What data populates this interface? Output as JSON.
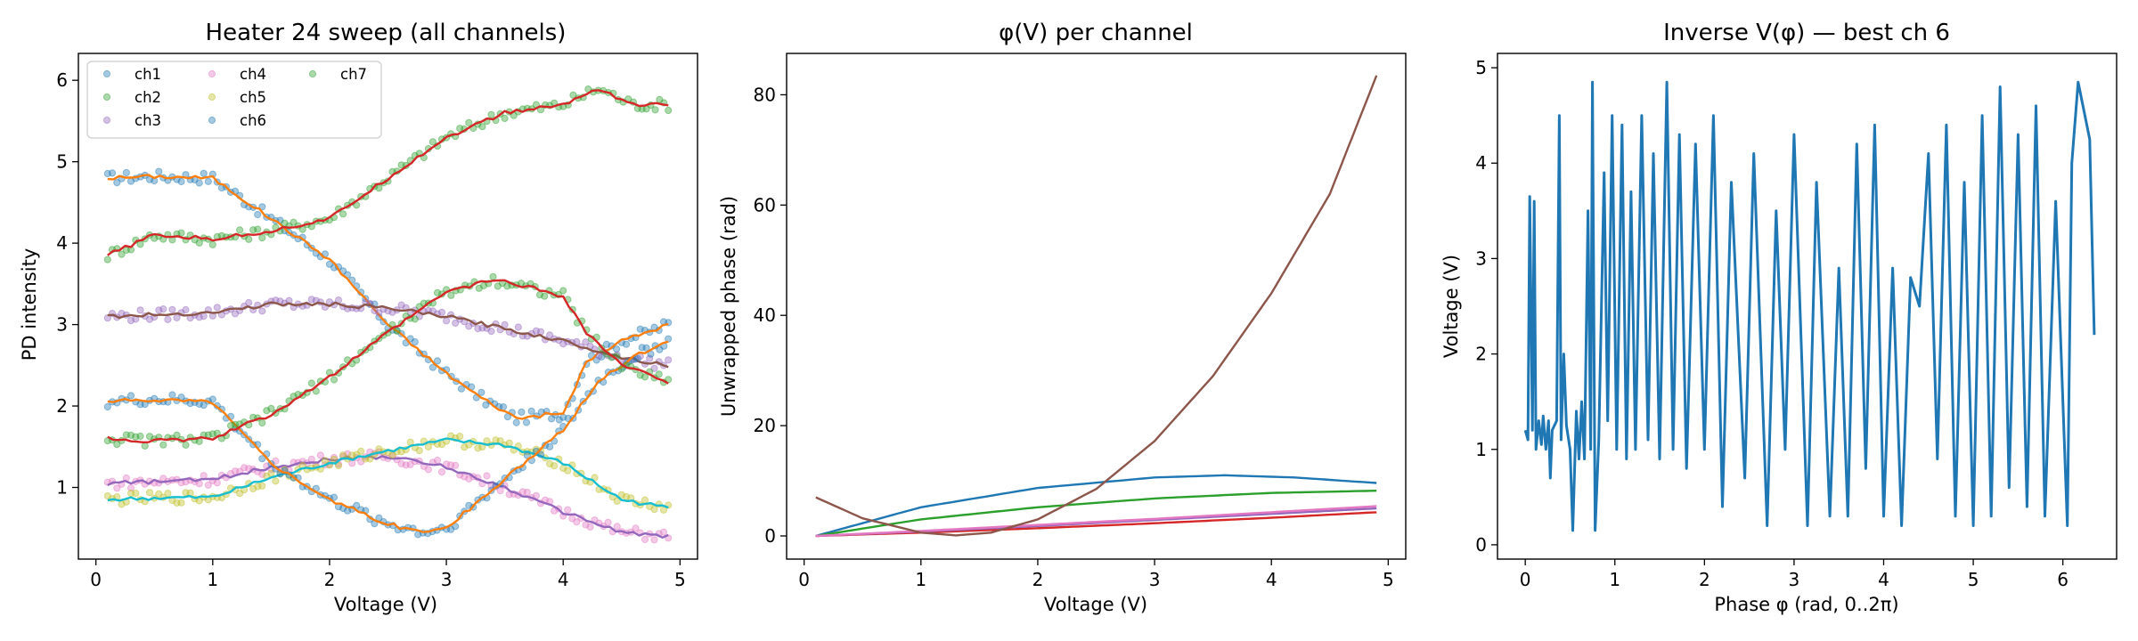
{
  "chart_data": [
    {
      "type": "scatter",
      "title": "Heater 24 sweep (all channels)",
      "xlabel": "Voltage (V)",
      "ylabel": "PD intensity",
      "xlim": [
        -0.15,
        5.15
      ],
      "ylim": [
        0.12,
        6.33
      ],
      "xticks": [
        "0",
        "1",
        "2",
        "3",
        "4",
        "5"
      ],
      "yticks": [
        "1",
        "2",
        "3",
        "4",
        "5",
        "6"
      ],
      "grid": false,
      "legend": "top-left",
      "legend_ncol": 3,
      "series": [
        {
          "name": "ch1",
          "color": "#1f77b4",
          "points": [
            [
              0.1,
              4.8
            ],
            [
              0.5,
              4.82
            ],
            [
              1.0,
              4.8
            ],
            [
              1.5,
              4.3
            ],
            [
              2.0,
              3.8
            ],
            [
              2.5,
              3.0
            ],
            [
              3.0,
              2.4
            ],
            [
              3.3,
              2.1
            ],
            [
              3.6,
              1.85
            ],
            [
              3.9,
              1.9
            ],
            [
              4.0,
              1.9
            ],
            [
              4.2,
              2.55
            ],
            [
              4.5,
              2.8
            ],
            [
              4.9,
              3.0
            ]
          ]
        },
        {
          "name": "ch2",
          "color": "#2ca02c",
          "points": [
            [
              0.1,
              3.85
            ],
            [
              0.5,
              4.1
            ],
            [
              1.0,
              4.05
            ],
            [
              1.5,
              4.15
            ],
            [
              2.0,
              4.3
            ],
            [
              2.5,
              4.8
            ],
            [
              3.0,
              5.3
            ],
            [
              3.5,
              5.6
            ],
            [
              4.0,
              5.7
            ],
            [
              4.3,
              5.9
            ],
            [
              4.6,
              5.7
            ],
            [
              4.9,
              5.7
            ]
          ]
        },
        {
          "name": "ch3",
          "color": "#9467bd",
          "points": [
            [
              0.1,
              3.1
            ],
            [
              0.5,
              3.12
            ],
            [
              1.0,
              3.15
            ],
            [
              1.5,
              3.25
            ],
            [
              2.0,
              3.25
            ],
            [
              2.5,
              3.2
            ],
            [
              3.0,
              3.1
            ],
            [
              3.5,
              2.95
            ],
            [
              4.0,
              2.8
            ],
            [
              4.5,
              2.6
            ],
            [
              4.9,
              2.5
            ]
          ]
        },
        {
          "name": "ch4",
          "color": "#e377c2",
          "points": [
            [
              0.1,
              1.05
            ],
            [
              0.5,
              1.07
            ],
            [
              1.0,
              1.1
            ],
            [
              1.5,
              1.25
            ],
            [
              2.0,
              1.35
            ],
            [
              2.5,
              1.38
            ],
            [
              3.0,
              1.25
            ],
            [
              3.5,
              1.0
            ],
            [
              4.0,
              0.7
            ],
            [
              4.5,
              0.45
            ],
            [
              4.9,
              0.4
            ]
          ]
        },
        {
          "name": "ch5",
          "color": "#bcbd22",
          "points": [
            [
              0.1,
              0.85
            ],
            [
              0.5,
              0.87
            ],
            [
              1.0,
              0.88
            ],
            [
              1.5,
              1.12
            ],
            [
              2.0,
              1.3
            ],
            [
              2.5,
              1.45
            ],
            [
              3.0,
              1.58
            ],
            [
              3.5,
              1.52
            ],
            [
              4.0,
              1.3
            ],
            [
              4.5,
              0.85
            ],
            [
              4.9,
              0.75
            ]
          ]
        },
        {
          "name": "ch6",
          "color": "#1f77b4",
          "points": [
            [
              0.1,
              2.05
            ],
            [
              0.5,
              2.08
            ],
            [
              1.0,
              2.05
            ],
            [
              1.5,
              1.3
            ],
            [
              2.0,
              0.85
            ],
            [
              2.5,
              0.55
            ],
            [
              2.8,
              0.45
            ],
            [
              3.0,
              0.5
            ],
            [
              3.5,
              1.1
            ],
            [
              4.0,
              1.7
            ],
            [
              4.3,
              2.3
            ],
            [
              4.6,
              2.6
            ],
            [
              4.9,
              2.8
            ]
          ]
        },
        {
          "name": "ch7",
          "color": "#2ca02c",
          "points": [
            [
              0.1,
              1.6
            ],
            [
              0.5,
              1.57
            ],
            [
              1.0,
              1.6
            ],
            [
              1.5,
              1.9
            ],
            [
              2.0,
              2.35
            ],
            [
              2.5,
              2.9
            ],
            [
              3.0,
              3.4
            ],
            [
              3.4,
              3.55
            ],
            [
              3.6,
              3.5
            ],
            [
              4.0,
              3.35
            ],
            [
              4.2,
              2.9
            ],
            [
              4.5,
              2.5
            ],
            [
              4.9,
              2.3
            ]
          ]
        }
      ]
    },
    {
      "type": "line",
      "title": "φ(V) per channel",
      "xlabel": "Voltage (V)",
      "ylabel": "Unwrapped phase (rad)",
      "xlim": [
        -0.15,
        5.15
      ],
      "ylim": [
        -4.2,
        87.5
      ],
      "xticks": [
        "0",
        "1",
        "2",
        "3",
        "4",
        "5"
      ],
      "yticks": [
        "0",
        "20",
        "40",
        "60",
        "80"
      ],
      "grid": false,
      "series": [
        {
          "color": "#1f77b4",
          "points": [
            [
              0.1,
              0
            ],
            [
              1,
              5.2
            ],
            [
              2,
              8.7
            ],
            [
              3,
              10.6
            ],
            [
              3.6,
              11.0
            ],
            [
              4.2,
              10.6
            ],
            [
              4.9,
              9.6
            ]
          ]
        },
        {
          "color": "#2ca02c",
          "points": [
            [
              0.1,
              0
            ],
            [
              1,
              3.0
            ],
            [
              2,
              5.2
            ],
            [
              3,
              6.8
            ],
            [
              4,
              7.8
            ],
            [
              4.9,
              8.2
            ]
          ]
        },
        {
          "color": "#d62728",
          "points": [
            [
              0.1,
              0
            ],
            [
              1,
              0.6
            ],
            [
              2,
              1.4
            ],
            [
              3,
              2.3
            ],
            [
              4,
              3.3
            ],
            [
              4.9,
              4.3
            ]
          ]
        },
        {
          "color": "#9467bd",
          "points": [
            [
              0.1,
              0
            ],
            [
              1,
              0.8
            ],
            [
              2,
              1.8
            ],
            [
              3,
              2.9
            ],
            [
              4,
              4.0
            ],
            [
              4.9,
              5.0
            ]
          ]
        },
        {
          "color": "#e377c2",
          "points": [
            [
              0.1,
              0
            ],
            [
              1,
              0.9
            ],
            [
              2,
              2.0
            ],
            [
              3,
              3.1
            ],
            [
              4,
              4.3
            ],
            [
              4.9,
              5.4
            ]
          ]
        },
        {
          "color": "#8c564b",
          "points": [
            [
              0.1,
              7.0
            ],
            [
              0.5,
              3.2
            ],
            [
              1,
              0.6
            ],
            [
              1.3,
              0.1
            ],
            [
              1.6,
              0.6
            ],
            [
              2,
              3.0
            ],
            [
              2.5,
              8.5
            ],
            [
              3,
              17.2
            ],
            [
              3.5,
              29
            ],
            [
              4,
              44
            ],
            [
              4.5,
              62
            ],
            [
              4.9,
              83.5
            ]
          ]
        }
      ]
    },
    {
      "type": "line",
      "title": "Inverse V(φ) — best ch 6",
      "xlabel": "Phase φ (rad, 0..2π)",
      "ylabel": "Voltage (V)",
      "xlim": [
        -0.31,
        6.6
      ],
      "ylim": [
        -0.15,
        5.15
      ],
      "xticks": [
        "0",
        "1",
        "2",
        "3",
        "4",
        "5",
        "6"
      ],
      "yticks": [
        "0",
        "1",
        "2",
        "3",
        "4",
        "5"
      ],
      "grid": false,
      "series": [
        {
          "color": "#1f77b4",
          "points": [
            [
              0,
              1.2
            ],
            [
              0.03,
              1.1
            ],
            [
              0.05,
              3.65
            ],
            [
              0.08,
              1.2
            ],
            [
              0.1,
              3.6
            ],
            [
              0.12,
              1.0
            ],
            [
              0.15,
              1.3
            ],
            [
              0.18,
              1.05
            ],
            [
              0.2,
              1.35
            ],
            [
              0.23,
              1.0
            ],
            [
              0.26,
              1.3
            ],
            [
              0.28,
              0.7
            ],
            [
              0.3,
              1.2
            ],
            [
              0.35,
              1.3
            ],
            [
              0.38,
              4.5
            ],
            [
              0.4,
              1.1
            ],
            [
              0.43,
              2.0
            ],
            [
              0.46,
              1.25
            ],
            [
              0.5,
              1.0
            ],
            [
              0.53,
              0.15
            ],
            [
              0.57,
              1.4
            ],
            [
              0.6,
              0.9
            ],
            [
              0.63,
              1.5
            ],
            [
              0.66,
              0.9
            ],
            [
              0.7,
              3.5
            ],
            [
              0.73,
              1.0
            ],
            [
              0.75,
              4.85
            ],
            [
              0.78,
              0.15
            ],
            [
              0.82,
              1.1
            ],
            [
              0.88,
              3.9
            ],
            [
              0.92,
              1.3
            ],
            [
              0.97,
              4.5
            ],
            [
              1.02,
              1.0
            ],
            [
              1.08,
              4.4
            ],
            [
              1.13,
              0.9
            ],
            [
              1.18,
              3.7
            ],
            [
              1.23,
              1.0
            ],
            [
              1.3,
              4.5
            ],
            [
              1.37,
              1.1
            ],
            [
              1.43,
              4.1
            ],
            [
              1.5,
              0.9
            ],
            [
              1.58,
              4.85
            ],
            [
              1.65,
              1.0
            ],
            [
              1.72,
              4.3
            ],
            [
              1.8,
              0.8
            ],
            [
              1.9,
              4.2
            ],
            [
              2.0,
              1.0
            ],
            [
              2.1,
              4.5
            ],
            [
              2.2,
              0.4
            ],
            [
              2.3,
              3.8
            ],
            [
              2.45,
              0.7
            ],
            [
              2.55,
              4.1
            ],
            [
              2.7,
              0.2
            ],
            [
              2.8,
              3.5
            ],
            [
              2.9,
              1.0
            ],
            [
              3.0,
              4.3
            ],
            [
              3.15,
              0.2
            ],
            [
              3.25,
              3.8
            ],
            [
              3.4,
              0.3
            ],
            [
              3.5,
              2.9
            ],
            [
              3.6,
              0.3
            ],
            [
              3.7,
              4.2
            ],
            [
              3.8,
              0.8
            ],
            [
              3.9,
              4.4
            ],
            [
              4.0,
              0.3
            ],
            [
              4.1,
              2.9
            ],
            [
              4.2,
              0.2
            ],
            [
              4.3,
              2.8
            ],
            [
              4.4,
              2.5
            ],
            [
              4.5,
              4.1
            ],
            [
              4.6,
              0.9
            ],
            [
              4.7,
              4.4
            ],
            [
              4.8,
              0.3
            ],
            [
              4.9,
              3.8
            ],
            [
              5.0,
              0.2
            ],
            [
              5.1,
              4.5
            ],
            [
              5.2,
              0.3
            ],
            [
              5.3,
              4.8
            ],
            [
              5.4,
              0.6
            ],
            [
              5.5,
              4.3
            ],
            [
              5.6,
              0.4
            ],
            [
              5.7,
              4.6
            ],
            [
              5.8,
              0.3
            ],
            [
              5.92,
              3.6
            ],
            [
              6.05,
              0.2
            ],
            [
              6.1,
              4.0
            ],
            [
              6.17,
              4.85
            ],
            [
              6.3,
              4.25
            ],
            [
              6.35,
              2.2
            ]
          ]
        }
      ]
    }
  ]
}
